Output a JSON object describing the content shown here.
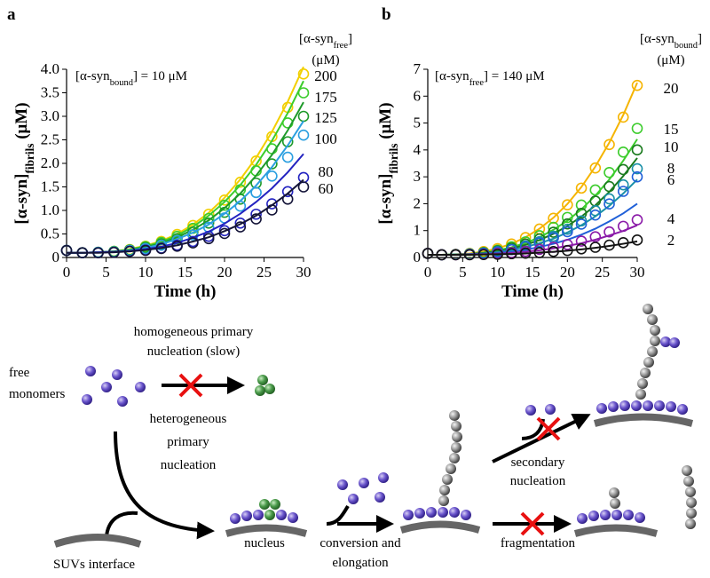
{
  "chart_data": [
    {
      "type": "line",
      "panel": "a",
      "annotation": {
        "pre": "[α-syn",
        "sub": "bound",
        "post": "] = 10 μM"
      },
      "legend_title": {
        "pre": "[α-syn",
        "sub": "free",
        "post": "]"
      },
      "legend_unit": "(μM)",
      "x_label": "Time (h)",
      "y_label": {
        "pre": "[α-syn]",
        "sub": "fibrils",
        "post": " (μM)"
      },
      "x": [
        0,
        2,
        4,
        6,
        8,
        10,
        12,
        14,
        16,
        18,
        20,
        22,
        24,
        26,
        28,
        30
      ],
      "xlim": [
        0,
        30
      ],
      "xticks": [
        0,
        5,
        10,
        15,
        20,
        25,
        30
      ],
      "ylim": [
        0,
        4
      ],
      "yticks": [
        0,
        0.5,
        {
          "value": 1,
          "label": "1.0"
        },
        1.5,
        {
          "value": 2,
          "label": "2.0"
        },
        2.5,
        {
          "value": 3,
          "label": "3.0"
        },
        3.5,
        {
          "value": 4,
          "label": "4.0"
        }
      ],
      "series": [
        {
          "name": "200",
          "color": "#f2cf00",
          "values": [
            0.15,
            0.1,
            0.11,
            0.13,
            0.17,
            0.24,
            0.34,
            0.49,
            0.68,
            0.92,
            1.22,
            1.6,
            2.05,
            2.57,
            3.19,
            3.9
          ],
          "fit": [
            0.1,
            0.1,
            0.11,
            0.13,
            0.18,
            0.25,
            0.35,
            0.5,
            0.7,
            0.95,
            1.27,
            1.66,
            2.12,
            2.67,
            3.31,
            4.05
          ]
        },
        {
          "name": "175",
          "color": "#3ccc2c",
          "values": [
            0.15,
            0.1,
            0.11,
            0.13,
            0.16,
            0.23,
            0.32,
            0.45,
            0.62,
            0.83,
            1.11,
            1.44,
            1.84,
            2.31,
            2.86,
            3.5
          ],
          "fit": [
            0.1,
            0.1,
            0.11,
            0.13,
            0.17,
            0.24,
            0.33,
            0.47,
            0.65,
            0.89,
            1.18,
            1.54,
            1.97,
            2.48,
            3.07,
            3.75
          ]
        },
        {
          "name": "125",
          "color": "#1e9a2a",
          "values": [
            0.15,
            0.1,
            0.11,
            0.12,
            0.16,
            0.21,
            0.29,
            0.4,
            0.54,
            0.73,
            0.96,
            1.24,
            1.58,
            1.99,
            2.46,
            3.0
          ],
          "fit": [
            0.1,
            0.1,
            0.11,
            0.13,
            0.16,
            0.22,
            0.3,
            0.43,
            0.59,
            0.79,
            1.05,
            1.36,
            1.74,
            2.18,
            2.7,
            3.3
          ]
        },
        {
          "name": "100",
          "color": "#2b9fe0",
          "values": [
            0.15,
            0.1,
            0.11,
            0.12,
            0.15,
            0.19,
            0.26,
            0.36,
            0.48,
            0.64,
            0.84,
            1.09,
            1.38,
            1.73,
            2.13,
            2.6
          ],
          "fit": [
            0.1,
            0.1,
            0.11,
            0.12,
            0.15,
            0.2,
            0.28,
            0.39,
            0.53,
            0.7,
            0.93,
            1.2,
            1.53,
            1.92,
            2.38,
            2.9
          ]
        },
        {
          "name": "80",
          "color": "#2323c0",
          "values": [
            0.15,
            0.1,
            0.1,
            0.11,
            0.13,
            0.16,
            0.2,
            0.26,
            0.34,
            0.45,
            0.57,
            0.73,
            0.92,
            1.14,
            1.4,
            1.7
          ],
          "fit": [
            0.1,
            0.1,
            0.11,
            0.12,
            0.14,
            0.18,
            0.23,
            0.31,
            0.42,
            0.55,
            0.72,
            0.93,
            1.18,
            1.47,
            1.81,
            2.2
          ]
        },
        {
          "name": "60",
          "color": "#141438",
          "values": [
            0.15,
            0.1,
            0.1,
            0.11,
            0.13,
            0.15,
            0.19,
            0.24,
            0.31,
            0.4,
            0.51,
            0.65,
            0.82,
            1.01,
            1.24,
            1.5
          ],
          "fit": [
            0.1,
            0.1,
            0.1,
            0.11,
            0.13,
            0.16,
            0.2,
            0.26,
            0.34,
            0.43,
            0.56,
            0.71,
            0.89,
            1.11,
            1.36,
            1.65
          ]
        }
      ]
    },
    {
      "type": "line",
      "panel": "b",
      "annotation": {
        "pre": "[α-syn",
        "sub": "free",
        "post": "] = 140 μM"
      },
      "legend_title": {
        "pre": "[α-syn",
        "sub": "bound",
        "post": "]"
      },
      "legend_unit": "(μM)",
      "x_label": "Time (h)",
      "y_label": {
        "pre": "[α-syn]",
        "sub": "fibrils",
        "post": " (μM)"
      },
      "x": [
        0,
        2,
        4,
        6,
        8,
        10,
        12,
        14,
        16,
        18,
        20,
        22,
        24,
        26,
        28,
        30
      ],
      "xlim": [
        0,
        30
      ],
      "xticks": [
        0,
        5,
        10,
        15,
        20,
        25,
        30
      ],
      "ylim": [
        0,
        7
      ],
      "yticks": [
        0,
        1,
        2,
        3,
        4,
        5,
        6,
        7
      ],
      "series": [
        {
          "name": "20",
          "color": "#f5b400",
          "values": [
            0.15,
            0.1,
            0.12,
            0.15,
            0.22,
            0.33,
            0.5,
            0.74,
            1.06,
            1.46,
            1.96,
            2.58,
            3.33,
            4.2,
            5.22,
            6.4
          ],
          "fit": [
            0.1,
            0.1,
            0.12,
            0.15,
            0.22,
            0.34,
            0.51,
            0.75,
            1.07,
            1.48,
            1.99,
            2.62,
            3.38,
            4.27,
            5.3,
            6.5
          ]
        },
        {
          "name": "15",
          "color": "#3ccc2c",
          "values": [
            0.15,
            0.1,
            0.11,
            0.14,
            0.19,
            0.27,
            0.4,
            0.58,
            0.81,
            1.12,
            1.49,
            1.95,
            2.51,
            3.16,
            3.92,
            4.8
          ],
          "fit": [
            0.1,
            0.1,
            0.11,
            0.13,
            0.18,
            0.26,
            0.38,
            0.54,
            0.75,
            1.03,
            1.37,
            1.79,
            2.3,
            2.9,
            3.6,
            4.4
          ]
        },
        {
          "name": "10",
          "color": "#1a7a1e",
          "values": [
            0.15,
            0.1,
            0.11,
            0.13,
            0.17,
            0.24,
            0.35,
            0.5,
            0.69,
            0.94,
            1.25,
            1.64,
            2.1,
            2.64,
            3.27,
            4.0
          ],
          "fit": [
            0.1,
            0.1,
            0.11,
            0.13,
            0.17,
            0.23,
            0.33,
            0.47,
            0.65,
            0.88,
            1.17,
            1.52,
            1.94,
            2.44,
            3.03,
            3.7
          ]
        },
        {
          "name": "8",
          "color": "#1a90a8",
          "values": [
            0.15,
            0.1,
            0.11,
            0.13,
            0.16,
            0.22,
            0.3,
            0.43,
            0.59,
            0.79,
            1.05,
            1.36,
            1.74,
            2.18,
            2.7,
            3.3
          ],
          "fit": [
            0.1,
            0.1,
            0.11,
            0.12,
            0.15,
            0.2,
            0.28,
            0.39,
            0.53,
            0.7,
            0.93,
            1.2,
            1.53,
            1.92,
            2.38,
            2.9
          ]
        },
        {
          "name": "6",
          "color": "#2060d8",
          "values": [
            0.15,
            0.1,
            0.11,
            0.12,
            0.16,
            0.21,
            0.29,
            0.4,
            0.54,
            0.73,
            0.96,
            1.24,
            1.58,
            1.99,
            2.46,
            3.0
          ],
          "fit": [
            0.1,
            0.1,
            0.1,
            0.12,
            0.14,
            0.17,
            0.22,
            0.29,
            0.39,
            0.51,
            0.66,
            0.85,
            1.07,
            1.34,
            1.64,
            2.0
          ]
        },
        {
          "name": "4",
          "color": "#8a1aa8",
          "values": [
            0.15,
            0.1,
            0.1,
            0.11,
            0.12,
            0.15,
            0.18,
            0.23,
            0.3,
            0.38,
            0.48,
            0.61,
            0.77,
            0.95,
            1.16,
            1.4
          ],
          "fit": [
            0.1,
            0.1,
            0.1,
            0.11,
            0.12,
            0.14,
            0.17,
            0.21,
            0.27,
            0.34,
            0.43,
            0.53,
            0.66,
            0.82,
            0.99,
            1.2
          ]
        },
        {
          "name": "2",
          "color": "#141414",
          "values": [
            0.15,
            0.1,
            0.1,
            0.1,
            0.11,
            0.12,
            0.14,
            0.16,
            0.18,
            0.22,
            0.26,
            0.32,
            0.38,
            0.46,
            0.55,
            0.65
          ],
          "fit": [
            0.1,
            0.1,
            0.1,
            0.1,
            0.11,
            0.12,
            0.13,
            0.15,
            0.18,
            0.21,
            0.25,
            0.3,
            0.36,
            0.43,
            0.51,
            0.6
          ]
        }
      ]
    }
  ],
  "diagram": {
    "homogeneous": [
      "homogeneous primary",
      "nucleation (slow)"
    ],
    "free_monomers": [
      "free",
      "monomers"
    ],
    "heterogeneous": [
      "heterogeneous",
      "primary",
      "nucleation"
    ],
    "suv": "SUVs interface",
    "nucleus": "nucleus",
    "conversion": [
      "conversion and",
      "elongation"
    ],
    "fragmentation": "fragmentation",
    "secondary": [
      "secondary",
      "nucleation"
    ]
  }
}
